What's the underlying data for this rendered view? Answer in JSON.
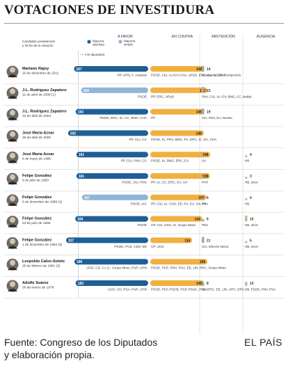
{
  "title": "VOTACIONES DE INVESTIDURA",
  "header": {
    "candidate_label_1": "Candidato presidencial",
    "candidate_label_2": "y fecha de la votación",
    "favor": "A FAVOR",
    "contra": "EN CONTRA",
    "abstencion": "ABSTENCIÓN",
    "ausencia": "AUSENCIA",
    "legend_absolute_1": "Mayoría",
    "legend_absolute_2": "absoluta",
    "legend_simple_1": "Mayoría",
    "legend_simple_2": "simple",
    "majority_note": "176 diputados"
  },
  "colors": {
    "absolute": "#1f5f97",
    "simple": "#8fb5d8",
    "contra": "#f0b040",
    "abstention": "#a9a9a9",
    "absence": "#c9b99c",
    "grid": "#c8c8c8"
  },
  "source": {
    "line1": "Fuente: Congreso de los Diputados",
    "line2": "y elaboración propia."
  },
  "brand": "EL PAÍS",
  "chart_data": {
    "type": "bar",
    "title": "VOTACIONES DE INVESTIDURA",
    "xlim": [
      0,
      350
    ],
    "majority_threshold": 176,
    "categories": [
      "Mariano Rajoy",
      "J.L. Rodríguez Zapatero",
      "J.L. Rodríguez Zapatero",
      "José María Aznar",
      "José María Aznar",
      "Felipe González",
      "Felipe González",
      "Felipe González",
      "Felipe González",
      "Leopoldo Calvo-Sotelo",
      "Adolfo Suárez"
    ],
    "rows": [
      {
        "name": "Mariano Rajoy",
        "date": "20 de diciembre de 2011",
        "favor": 187,
        "majority": "absoluta",
        "favor_parties": "PP, UPN, F. Asturias",
        "contra": 149,
        "contra_parties": "PSOE, CiU, IU-ICV-CHA, UPyD, ERC, Geroa Bai, Compromís",
        "abstention": 14,
        "abstention_parties": "Amaiur, CC, PNV",
        "absence": "",
        "absence_parties": ""
      },
      {
        "name": "J.L. Rodríguez Zapatero",
        "date": "11 de abril de 2008",
        "date_mark": "(1)",
        "favor": 169,
        "majority": "simple",
        "favor_parties": "PSOE",
        "contra": 158,
        "contra_parties": "PP, ERC, UPyD",
        "abstention": 23,
        "abstention_parties": "PNV, CiU, IU, ICV, BNG, CC, NaBai",
        "absence": "",
        "absence_parties": ""
      },
      {
        "name": "J.L. Rodríguez Zapatero",
        "date": "16 de abril de 2004",
        "favor": 183,
        "majority": "absoluta",
        "favor_parties": "PSOE, ERC, IU, CC, BNG, CHA",
        "contra": 148,
        "contra_parties": "PP",
        "abstention": 19,
        "abstention_parties": "CiU, PNV, EA, Na-Bai",
        "absence": "",
        "absence_parties": ""
      },
      {
        "name": "José María Aznar",
        "date": "26 de abril de 2000",
        "favor": 202,
        "majority": "absoluta",
        "favor_parties": "PP, CiU, CC",
        "contra": 148,
        "contra_parties": "PSOE, IU, PNV, BNG, PA, ERC, IC, EA, CHA",
        "abstention": "",
        "abstention_parties": "",
        "absence": "",
        "absence_parties": ""
      },
      {
        "name": "José María Aznar",
        "date": "4 de mayo de 1996",
        "favor": 181,
        "majority": "absoluta",
        "favor_parties": "PP, CiU, PNV, CC",
        "contra": 166,
        "contra_parties": "PSOE, IU, BNG, ERC, EA",
        "abstention": 1,
        "abstention_parties": "UV",
        "absence": 4,
        "absence_parties": "HB"
      },
      {
        "name": "Felipe González",
        "date": "9 de julio de 1993",
        "favor": 181,
        "majority": "absoluta",
        "favor_parties": "PSOE, CiU, PNV",
        "contra": 165,
        "contra_parties": "PP, IU, CC, ERC, EA, UV",
        "abstention": 1,
        "abstention_parties": "PAR",
        "absence": 3,
        "absence_parties": "HB, otros"
      },
      {
        "name": "Felipe González",
        "date": "5 de diciembre de 1989",
        "date_mark": "(1)",
        "favor": 167,
        "majority": "simple",
        "favor_parties": "PSOE, AIC",
        "contra": 155,
        "contra_parties": "PP, CiU, IU, CDS, EE, PA, EA, UV, PA",
        "abstention": 6,
        "abstention_parties": "PNV",
        "absence": 4,
        "absence_parties": "HB"
      },
      {
        "name": "Felipe González",
        "date": "23 de julio de 1986",
        "favor": 184,
        "majority": "absoluta",
        "favor_parties": "PSOE",
        "contra": 144,
        "contra_parties": "CP, CiU, CDS, IU, Grupo Mixto",
        "abstention": 6,
        "abstention_parties": "PNV",
        "absence": 16,
        "absence_parties": "HB, otros"
      },
      {
        "name": "Felipe González",
        "date": "1 de diciembre de 1982",
        "date_mark": "(2)",
        "favor": 207,
        "majority": "absoluta",
        "favor_parties": "PSOE, PCE, CDS, EE",
        "contra": 116,
        "contra_parties": "CP, UCD",
        "abstention": 21,
        "abstention_parties": "CiU, Minoría Vasca",
        "absence": 5,
        "absence_parties": "HB, otros"
      },
      {
        "name": "Leopoldo Calvo-Sotelo",
        "date": "25 de febrero de 1981",
        "date_mark": "(2)",
        "favor": 186,
        "majority": "absoluta",
        "favor_parties": "UCD, CD, C.I.U., Grupo Mixto, PAR, UPN",
        "contra": 158,
        "contra_parties": "PSOE, PCE, PNV, PSA, EE, UN, ERC, Grupo Mixto",
        "abstention": "",
        "abstention_parties": "",
        "absence": "",
        "absence_parties": ""
      },
      {
        "name": "Adolfo Suárez",
        "date": "30 de marzo de 1979",
        "favor": 183,
        "majority": "absoluta",
        "favor_parties": "UCD, CD, PSA, PAR, UPN",
        "contra": 149,
        "contra_parties": "PSOE, PSC-PSOE, PCE-PSUC, PNV, ERC, EE, UN, UPC, ERC",
        "abstention": 8,
        "abstention_parties": "CiU",
        "absence": 10,
        "absence_parties": "HB, PSOE, PNV, PSA"
      }
    ]
  }
}
